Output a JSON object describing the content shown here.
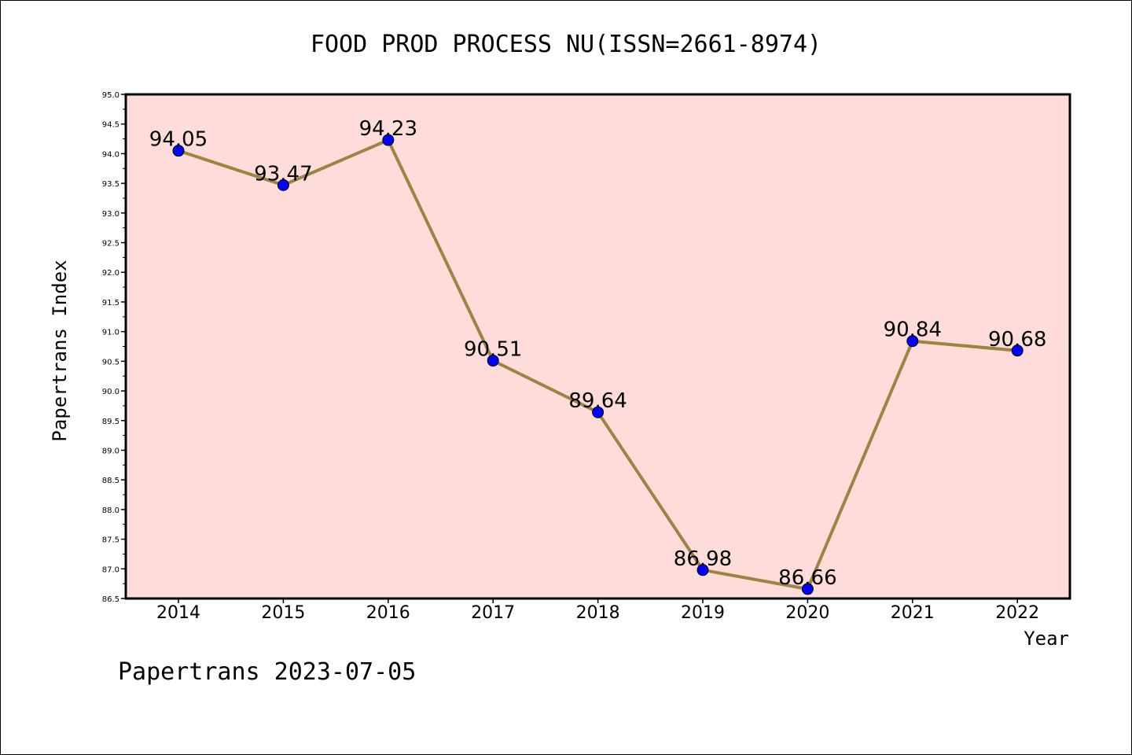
{
  "chart_data": {
    "type": "line",
    "title": "FOOD PROD PROCESS NU(ISSN=2661-8974)",
    "xlabel": "Year",
    "ylabel": "Papertrans Index",
    "categories": [
      "2014",
      "2015",
      "2016",
      "2017",
      "2018",
      "2019",
      "2020",
      "2021",
      "2022"
    ],
    "values": [
      94.05,
      93.47,
      94.23,
      90.51,
      89.64,
      86.98,
      86.66,
      90.84,
      90.68
    ],
    "data_labels": [
      "94.05",
      "93.47",
      "94.23",
      "90.51",
      "89.64",
      "86.98",
      "86.66",
      "90.84",
      "90.68"
    ],
    "ylim": [
      86.5,
      95.0
    ],
    "yticks": [
      "86.5",
      "87.0",
      "87.5",
      "88.0",
      "88.5",
      "89.0",
      "89.5",
      "90.0",
      "90.5",
      "91.0",
      "91.5",
      "92.0",
      "92.5",
      "93.0",
      "93.5",
      "94.0",
      "94.5",
      "95.0"
    ],
    "grid": false,
    "colors": {
      "plot_background": "#fddcda",
      "line": "#9b8541",
      "marker": "#0000ff"
    }
  },
  "footer": "Papertrans 2023-07-05"
}
